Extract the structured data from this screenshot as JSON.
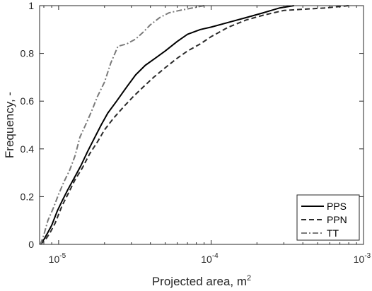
{
  "chart_data": {
    "type": "line",
    "title": "",
    "xlabel": "Projected area, m",
    "xlabel_superscript": "2",
    "ylabel": "Frequency, -",
    "xscale": "log",
    "xlim": [
      7.5e-06,
      0.001
    ],
    "ylim": [
      0,
      1
    ],
    "x_ticks": [
      {
        "value": 1e-05,
        "base": "10",
        "exp": "-5"
      },
      {
        "value": 0.0001,
        "base": "10",
        "exp": "-4"
      },
      {
        "value": 0.001,
        "base": "10",
        "exp": "-3"
      }
    ],
    "y_ticks": [
      {
        "value": 0,
        "label": "0"
      },
      {
        "value": 0.2,
        "label": "0.2"
      },
      {
        "value": 0.4,
        "label": "0.4"
      },
      {
        "value": 0.6,
        "label": "0.6"
      },
      {
        "value": 0.8,
        "label": "0.8"
      },
      {
        "value": 1,
        "label": "1"
      }
    ],
    "grid": false,
    "legend_position": "bottom-right",
    "series": [
      {
        "name": "PPS",
        "color": "#000000",
        "style": "solid",
        "points": [
          [
            7.6e-06,
            0.0
          ],
          [
            8e-06,
            0.02
          ],
          [
            8.5e-06,
            0.05
          ],
          [
            9e-06,
            0.08
          ],
          [
            9.8e-06,
            0.14
          ],
          [
            1.05e-05,
            0.18
          ],
          [
            1.15e-05,
            0.23
          ],
          [
            1.27e-05,
            0.28
          ],
          [
            1.4e-05,
            0.33
          ],
          [
            1.55e-05,
            0.39
          ],
          [
            1.7e-05,
            0.44
          ],
          [
            1.9e-05,
            0.5
          ],
          [
            2.1e-05,
            0.55
          ],
          [
            2.4e-05,
            0.6
          ],
          [
            2.8e-05,
            0.66
          ],
          [
            3.2e-05,
            0.71
          ],
          [
            3.7e-05,
            0.75
          ],
          [
            4.3e-05,
            0.78
          ],
          [
            5e-05,
            0.81
          ],
          [
            6e-05,
            0.85
          ],
          [
            7e-05,
            0.88
          ],
          [
            8.5e-05,
            0.9
          ],
          [
            0.0001,
            0.91
          ],
          [
            0.00013,
            0.93
          ],
          [
            0.00017,
            0.95
          ],
          [
            0.00022,
            0.97
          ],
          [
            0.00028,
            0.99
          ],
          [
            0.00035,
            1.0
          ]
        ]
      },
      {
        "name": "PPN",
        "color": "#2b2b2b",
        "style": "dashed",
        "points": [
          [
            7.6e-06,
            0.0
          ],
          [
            8.2e-06,
            0.02
          ],
          [
            8.8e-06,
            0.05
          ],
          [
            9.5e-06,
            0.09
          ],
          [
            1.05e-05,
            0.16
          ],
          [
            1.15e-05,
            0.21
          ],
          [
            1.28e-05,
            0.27
          ],
          [
            1.43e-05,
            0.32
          ],
          [
            1.6e-05,
            0.38
          ],
          [
            1.8e-05,
            0.43
          ],
          [
            2e-05,
            0.48
          ],
          [
            2.3e-05,
            0.53
          ],
          [
            2.7e-05,
            0.58
          ],
          [
            3.1e-05,
            0.62
          ],
          [
            3.6e-05,
            0.66
          ],
          [
            4.2e-05,
            0.7
          ],
          [
            5e-05,
            0.74
          ],
          [
            6e-05,
            0.78
          ],
          [
            7e-05,
            0.81
          ],
          [
            8.5e-05,
            0.84
          ],
          [
            0.0001,
            0.87
          ],
          [
            0.00013,
            0.91
          ],
          [
            0.00017,
            0.94
          ],
          [
            0.00022,
            0.96
          ],
          [
            0.0003,
            0.98
          ],
          [
            0.0004,
            0.985
          ],
          [
            0.00055,
            0.99
          ],
          [
            0.0008,
            1.0
          ]
        ]
      },
      {
        "name": "TT",
        "color": "#7a7a7a",
        "style": "dashdot",
        "points": [
          [
            7.6e-06,
            0.0
          ],
          [
            8e-06,
            0.04
          ],
          [
            8.5e-06,
            0.1
          ],
          [
            9.2e-06,
            0.15
          ],
          [
            1e-05,
            0.21
          ],
          [
            1.08e-05,
            0.26
          ],
          [
            1.18e-05,
            0.31
          ],
          [
            1.28e-05,
            0.37
          ],
          [
            1.38e-05,
            0.45
          ],
          [
            1.5e-05,
            0.5
          ],
          [
            1.65e-05,
            0.56
          ],
          [
            1.8e-05,
            0.62
          ],
          [
            2e-05,
            0.68
          ],
          [
            2.2e-05,
            0.76
          ],
          [
            2.45e-05,
            0.83
          ],
          [
            2.8e-05,
            0.84
          ],
          [
            3.2e-05,
            0.86
          ],
          [
            3.6e-05,
            0.89
          ],
          [
            4e-05,
            0.92
          ],
          [
            4.6e-05,
            0.95
          ],
          [
            5.3e-05,
            0.97
          ],
          [
            6.2e-05,
            0.98
          ],
          [
            7.5e-05,
            0.99
          ],
          [
            9e-05,
            1.0
          ]
        ]
      }
    ]
  }
}
